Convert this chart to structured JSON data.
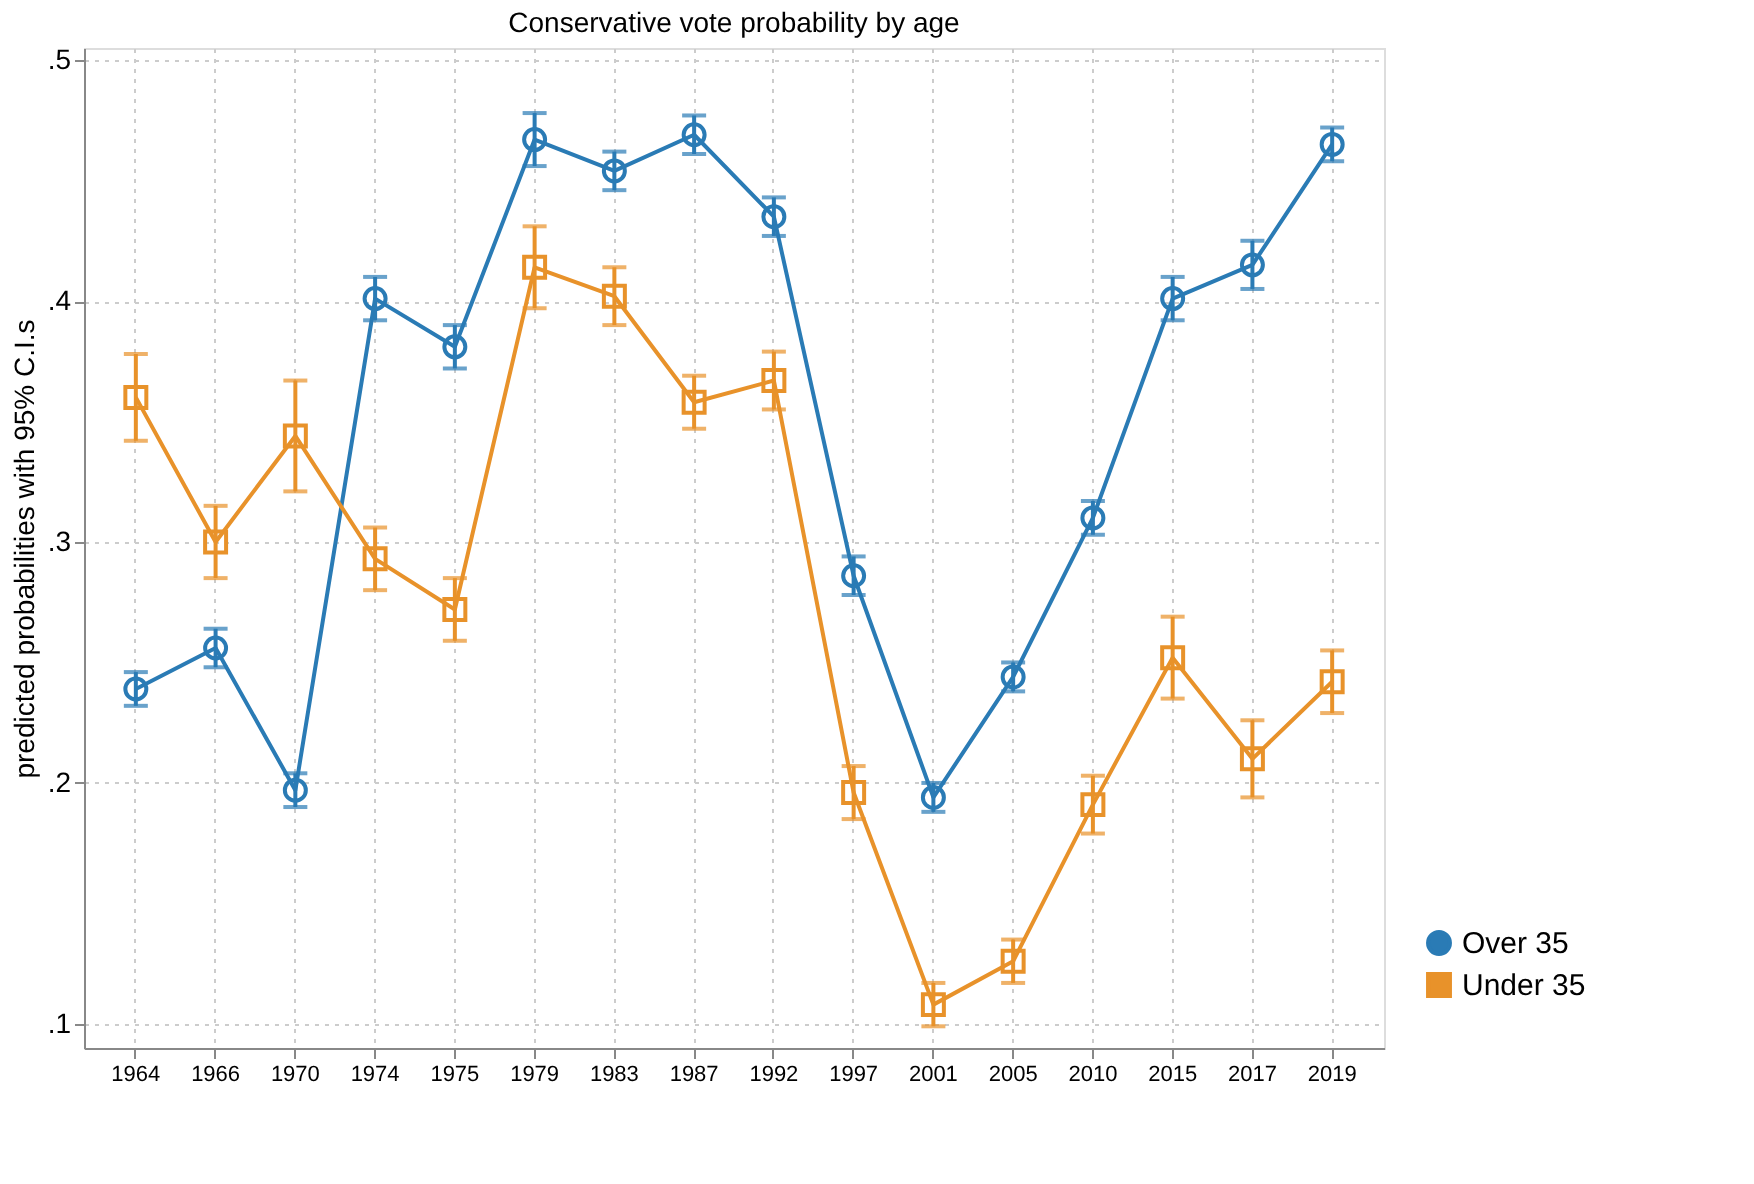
{
  "chart_data": {
    "type": "line",
    "title": "Conservative vote probability by age",
    "ylabel": "predicted probabilities with 95% C.I.s",
    "categories": [
      "1964",
      "1966",
      "1970",
      "1974",
      "1975",
      "1979",
      "1983",
      "1987",
      "1992",
      "1997",
      "2001",
      "2005",
      "2010",
      "2015",
      "2017",
      "2019"
    ],
    "series": [
      {
        "name": "Over 35",
        "color": "#2a7bb5",
        "marker": "circle",
        "values": [
          0.239,
          0.256,
          0.197,
          0.401,
          0.381,
          0.467,
          0.454,
          0.469,
          0.435,
          0.286,
          0.194,
          0.244,
          0.31,
          0.401,
          0.415,
          0.465
        ],
        "errors": [
          0.007,
          0.008,
          0.007,
          0.009,
          0.009,
          0.011,
          0.008,
          0.008,
          0.008,
          0.008,
          0.006,
          0.006,
          0.007,
          0.009,
          0.01,
          0.007
        ]
      },
      {
        "name": "Under 35",
        "color": "#e8922a",
        "marker": "square",
        "values": [
          0.36,
          0.3,
          0.344,
          0.293,
          0.272,
          0.414,
          0.402,
          0.358,
          0.367,
          0.196,
          0.108,
          0.126,
          0.191,
          0.252,
          0.21,
          0.242
        ],
        "errors": [
          0.018,
          0.015,
          0.023,
          0.013,
          0.013,
          0.017,
          0.012,
          0.011,
          0.012,
          0.011,
          0.009,
          0.009,
          0.012,
          0.017,
          0.016,
          0.013
        ]
      }
    ],
    "ylim": [
      0.09,
      0.505
    ],
    "yticks": [
      {
        "value": 0.1,
        "label": ".1"
      },
      {
        "value": 0.2,
        "label": ".2"
      },
      {
        "value": 0.3,
        "label": ".3"
      },
      {
        "value": 0.4,
        "label": ".4"
      },
      {
        "value": 0.5,
        "label": ".5"
      }
    ],
    "grid": true,
    "legend": "right",
    "line_style": "solid"
  }
}
